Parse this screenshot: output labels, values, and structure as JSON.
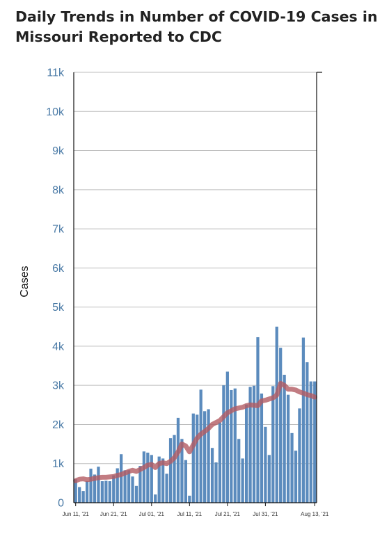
{
  "chart_data": {
    "type": "bar",
    "title": "Daily Trends in Number of COVID-19 Cases in Missouri Reported to CDC",
    "ylabel": "Cases",
    "xlabel": "",
    "ylim": [
      0,
      11000
    ],
    "grid": true,
    "y_ticks": [
      "0",
      "1k",
      "2k",
      "3k",
      "4k",
      "5k",
      "6k",
      "7k",
      "8k",
      "9k",
      "10k",
      "11k"
    ],
    "x_ticks": [
      {
        "label": "Jun 11, '21",
        "index": 0
      },
      {
        "label": "Jun 21, '21",
        "index": 10
      },
      {
        "label": "Jul 01, '21",
        "index": 20
      },
      {
        "label": "Jul 11, '21",
        "index": 30
      },
      {
        "label": "Jul 21, '21",
        "index": 40
      },
      {
        "label": "Jul 31, '21",
        "index": 50
      },
      {
        "label": "Aug 13, '21",
        "index": 63
      }
    ],
    "bar_color": "#5b8bbd",
    "line_color": "#b35b63",
    "series": [
      {
        "type": "bar",
        "values": [
          600,
          400,
          300,
          550,
          870,
          720,
          920,
          550,
          560,
          550,
          700,
          880,
          1240,
          830,
          830,
          670,
          430,
          940,
          1310,
          1280,
          1220,
          210,
          1180,
          1130,
          740,
          1650,
          1730,
          2170,
          1630,
          1090,
          180,
          2280,
          2250,
          2890,
          2340,
          2390,
          1400,
          1030,
          2050,
          3000,
          3350,
          2880,
          2920,
          1630,
          1130,
          2510,
          2960,
          2990,
          4230,
          2790,
          1940,
          1220,
          2980,
          4500,
          3960,
          3270,
          2760,
          1780,
          1330,
          2410,
          4220,
          3590,
          3100,
          3100
        ]
      },
      {
        "type": "line",
        "values": [
          560,
          600,
          610,
          590,
          600,
          620,
          640,
          650,
          650,
          660,
          670,
          700,
          720,
          760,
          800,
          830,
          800,
          850,
          900,
          960,
          980,
          900,
          1000,
          1020,
          1000,
          1060,
          1150,
          1300,
          1500,
          1450,
          1300,
          1480,
          1650,
          1750,
          1820,
          1900,
          2000,
          2050,
          2100,
          2200,
          2300,
          2350,
          2400,
          2420,
          2440,
          2480,
          2500,
          2490,
          2480,
          2600,
          2620,
          2650,
          2680,
          2750,
          3050,
          3000,
          2900,
          2900,
          2880,
          2830,
          2800,
          2760,
          2740,
          2700
        ]
      }
    ]
  }
}
